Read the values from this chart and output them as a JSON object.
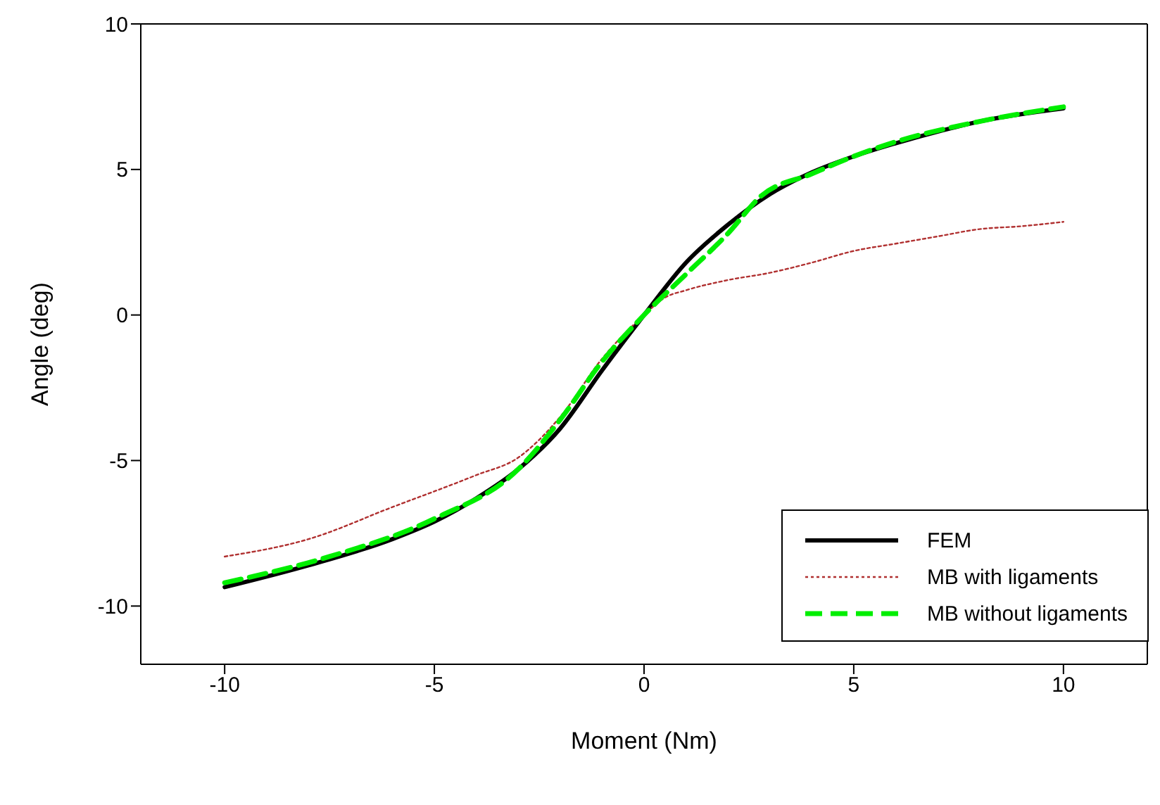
{
  "chart_data": {
    "type": "line",
    "xlabel": "Moment (Nm)",
    "ylabel": "Angle (deg)",
    "xlim": [
      -12,
      12
    ],
    "ylim": [
      -12,
      10
    ],
    "xticks": [
      -10,
      -5,
      0,
      5,
      10
    ],
    "yticks": [
      -10,
      -5,
      0,
      5,
      10
    ],
    "legend": "bottom right",
    "marker": "none",
    "series": [
      {
        "name": "FEM",
        "color": "#000000",
        "line_style": "solid",
        "x": [
          -10,
          -8,
          -6,
          -5,
          -4,
          -3,
          -2,
          -1,
          0,
          1,
          2,
          3,
          4,
          5,
          6,
          7,
          8,
          10
        ],
        "values": [
          -9.35,
          -8.6,
          -7.7,
          -7.1,
          -6.3,
          -5.3,
          -3.9,
          -1.9,
          0,
          1.8,
          3.1,
          4.15,
          4.9,
          5.45,
          5.9,
          6.3,
          6.65,
          7.1
        ]
      },
      {
        "name": "MB with ligaments",
        "color": "#b03030",
        "line_style": "dotted",
        "x": [
          -10,
          -8,
          -6,
          -4,
          -3,
          -2,
          -1,
          0,
          0.5,
          1,
          2,
          3,
          4,
          5,
          6,
          7,
          8,
          9,
          10
        ],
        "values": [
          -8.3,
          -7.7,
          -6.6,
          -5.5,
          -4.9,
          -3.5,
          -1.5,
          0,
          0.6,
          0.85,
          1.2,
          1.45,
          1.8,
          2.2,
          2.45,
          2.7,
          2.95,
          3.05,
          3.2
        ]
      },
      {
        "name": "MB without ligaments",
        "color": "#00ee00",
        "line_style": "dashed",
        "x": [
          -10,
          -7.5,
          -5,
          -3,
          -2,
          -1,
          0,
          1,
          2,
          2.8,
          4,
          5,
          6,
          8,
          10
        ],
        "values": [
          -9.2,
          -8.3,
          -7.0,
          -5.3,
          -3.6,
          -1.6,
          0,
          1.4,
          2.8,
          4.1,
          4.85,
          5.45,
          5.95,
          6.65,
          7.15
        ]
      }
    ]
  }
}
